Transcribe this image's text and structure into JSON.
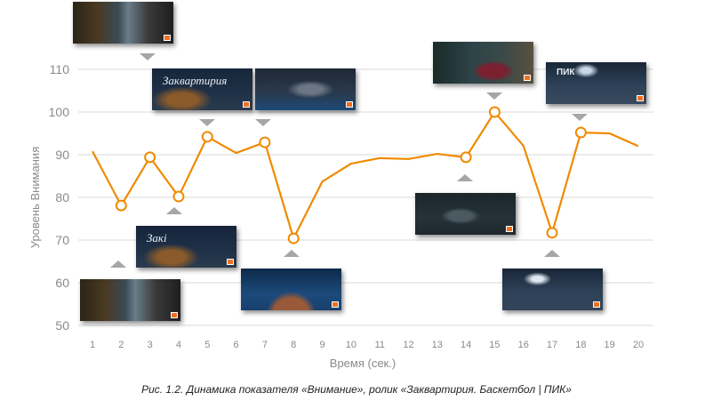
{
  "chart_data": {
    "type": "line",
    "xlabel": "Время (сек.)",
    "ylabel": "Уровень Внимания",
    "x": [
      1,
      2,
      3,
      4,
      5,
      6,
      7,
      8,
      9,
      10,
      11,
      12,
      13,
      14,
      15,
      16,
      17,
      18,
      19,
      20
    ],
    "values": [
      90.8,
      78.1,
      89.4,
      80.2,
      94.2,
      90.4,
      92.9,
      70.4,
      83.7,
      87.9,
      89.2,
      89.0,
      90.2,
      89.4,
      100.0,
      92.1,
      71.7,
      95.2,
      95.0,
      92.0
    ],
    "marked_points": [
      2,
      3,
      4,
      5,
      7,
      8,
      14,
      15,
      17,
      18
    ],
    "ylim": [
      50,
      110
    ],
    "yticks": [
      50,
      60,
      70,
      80,
      90,
      100,
      110
    ],
    "grid": true,
    "line_color": "#f08a00",
    "grid_color": "#d9d9d9",
    "legend": "none"
  },
  "thumbnails": [
    {
      "point": 3,
      "scene": "christmas-tree-room",
      "side": "above",
      "logo": ""
    },
    {
      "point": 5,
      "scene": "cat-title",
      "side": "above",
      "logo": "Заквартирия"
    },
    {
      "point": 7,
      "scene": "boy-basketball",
      "side": "above",
      "logo": ""
    },
    {
      "point": 4,
      "scene": "cat-title-partial",
      "side": "below",
      "logo": "Закі"
    },
    {
      "point": 2,
      "scene": "christmas-tree-room",
      "side": "below",
      "logo": ""
    },
    {
      "point": 8,
      "scene": "basketball-hoop",
      "side": "below",
      "logo": ""
    },
    {
      "point": 15,
      "scene": "woman-basketball",
      "side": "above",
      "logo": ""
    },
    {
      "point": 18,
      "scene": "court-pik",
      "side": "above",
      "logo": "ПИК"
    },
    {
      "point": 14,
      "scene": "man-basketball",
      "side": "below",
      "logo": ""
    },
    {
      "point": 17,
      "scene": "court-night",
      "side": "below",
      "logo": ""
    }
  ],
  "caption": "Рис. 1.2. Динамика показателя «Внимание», ролик «Заквартирия. Баскетбол | ПИК»"
}
